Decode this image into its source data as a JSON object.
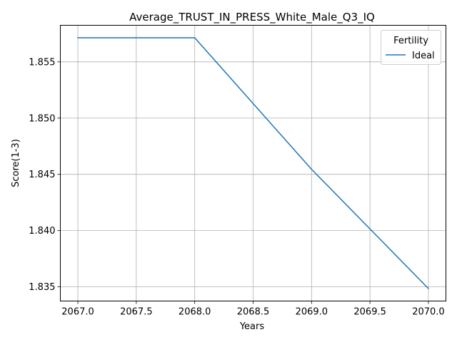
{
  "chart_data": {
    "type": "line",
    "title": "Average_TRUST_IN_PRESS_White_Male_Q3_IQ",
    "xlabel": "Years",
    "ylabel": "Score(1-3)",
    "x": [
      2067,
      2068,
      2069,
      2070
    ],
    "series": [
      {
        "name": "Ideal",
        "values": [
          1.85714,
          1.85714,
          1.84545,
          1.83485
        ],
        "color": "#1f77b4"
      }
    ],
    "xlim": [
      2066.85,
      2070.15
    ],
    "ylim": [
      1.83374,
      1.85825
    ],
    "xticks": [
      2067.0,
      2067.5,
      2068.0,
      2068.5,
      2069.0,
      2069.5,
      2070.0
    ],
    "xtick_labels": [
      "2067.0",
      "2067.5",
      "2068.0",
      "2068.5",
      "2069.0",
      "2069.5",
      "2070.0"
    ],
    "yticks": [
      1.835,
      1.84,
      1.845,
      1.85,
      1.855
    ],
    "ytick_labels": [
      "1.835",
      "1.840",
      "1.845",
      "1.850",
      "1.855"
    ],
    "grid": true,
    "legend": {
      "title": "Fertility",
      "placement": "upper-right"
    }
  }
}
